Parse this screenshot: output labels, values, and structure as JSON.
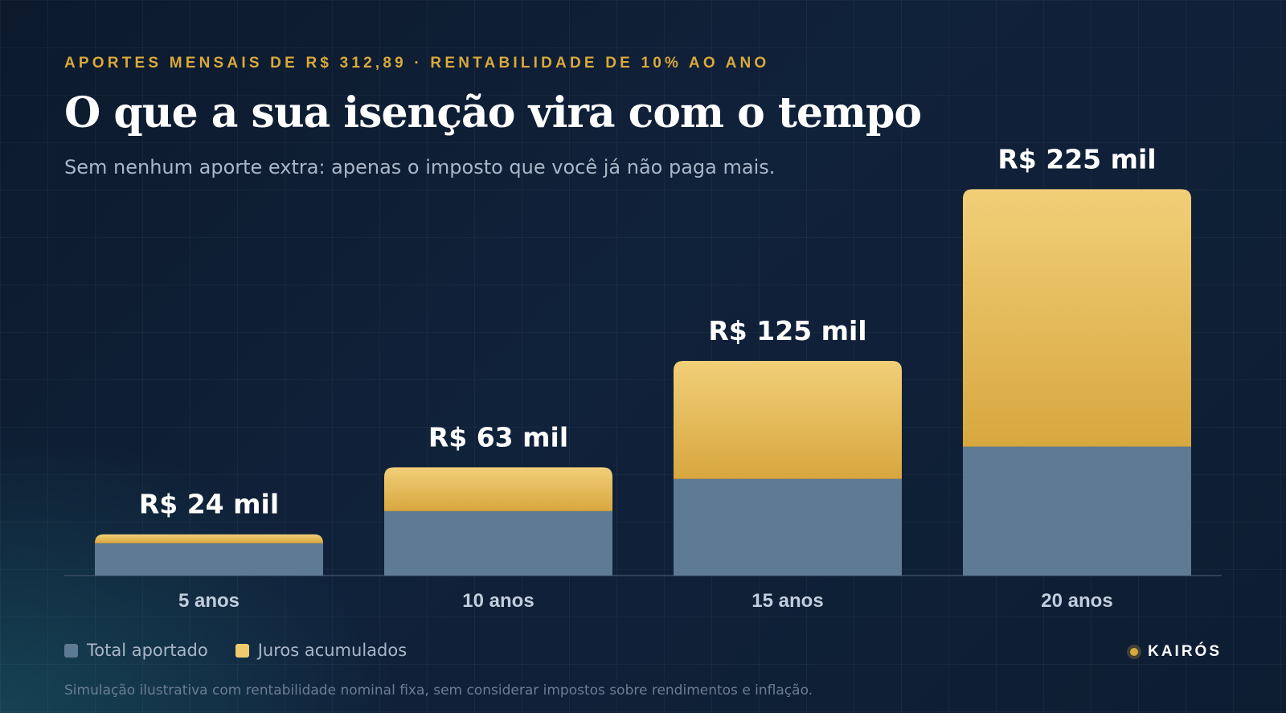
{
  "header": {
    "eyebrow": "APORTES MENSAIS DE R$ 312,89 · RENTABILIDADE DE 10% AO ANO",
    "title": "O que a sua isenção vira com o tempo",
    "subtitle": "Sem nenhum aporte extra: apenas o imposto que você já não paga mais."
  },
  "legend": {
    "items": [
      {
        "label": "Total aportado",
        "color": "#5f7a93"
      },
      {
        "label": "Juros acumulados",
        "color": "#efcb6e"
      }
    ]
  },
  "brand": {
    "name": "KAIRÓS",
    "accent": "#d9a93c"
  },
  "footnote": "Simulação ilustrativa com rentabilidade nominal fixa, sem considerar impostos sobre rendimentos e inflação.",
  "colors": {
    "background": "#0f1f35",
    "aportado": "#5f7a93",
    "juros_top": "#f1cf78",
    "juros_bottom": "#d8a73f"
  },
  "chart_data": {
    "type": "bar",
    "stacked": true,
    "categories": [
      "5 anos",
      "10 anos",
      "15 anos",
      "20 anos"
    ],
    "series": [
      {
        "name": "Total aportado",
        "values": [
          18.8,
          37.5,
          56.3,
          75.1
        ]
      },
      {
        "name": "Juros acumulados",
        "values": [
          5.2,
          25.5,
          68.7,
          149.9
        ]
      }
    ],
    "totals": [
      24,
      63,
      125,
      225
    ],
    "data_labels": [
      "R$ 24 mil",
      "R$ 63 mil",
      "R$ 125 mil",
      "R$ 225 mil"
    ],
    "ylim": [
      0,
      250
    ],
    "grid": false,
    "legend_position": "bottom-left"
  }
}
